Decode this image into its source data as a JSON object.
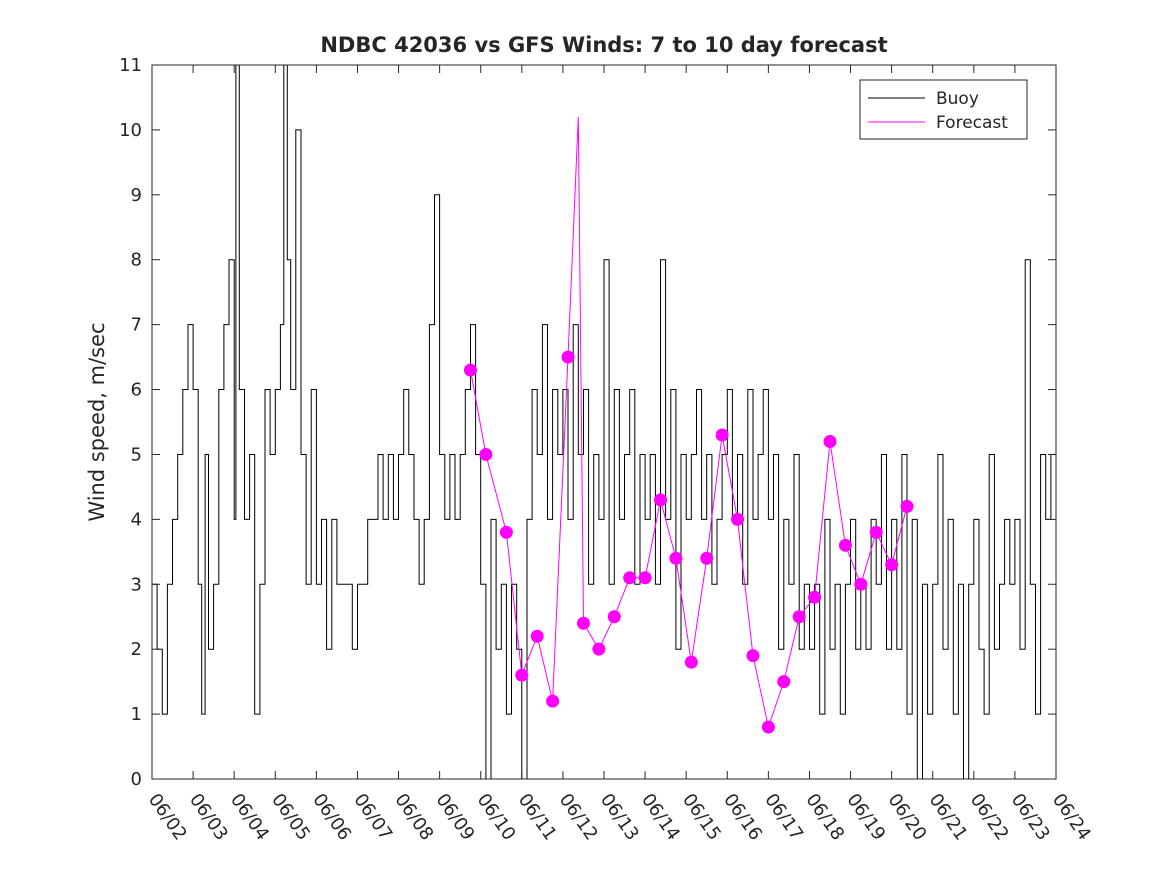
{
  "chart_data": {
    "type": "line",
    "title": "NDBC 42036 vs GFS Winds: 7 to 10 day forecast",
    "xlabel": "",
    "ylabel": "Wind speed, m/sec",
    "x_tick_labels": [
      "06/02",
      "06/03",
      "06/04",
      "06/05",
      "06/06",
      "06/07",
      "06/08",
      "06/09",
      "06/10",
      "06/11",
      "06/12",
      "06/13",
      "06/14",
      "06/15",
      "06/16",
      "06/17",
      "06/18",
      "06/19",
      "06/20",
      "06/21",
      "06/22",
      "06/23",
      "06/24"
    ],
    "xlim": [
      "06/02",
      "06/24"
    ],
    "y_ticks": [
      0,
      1,
      2,
      3,
      4,
      5,
      6,
      7,
      8,
      9,
      10,
      11
    ],
    "ylim": [
      0,
      11
    ],
    "grid": false,
    "legend": {
      "position": "top-right",
      "entries": [
        "Buoy",
        "Forecast"
      ]
    },
    "series": [
      {
        "name": "Buoy",
        "color": "#000000",
        "style": "stairs",
        "points": [
          [
            "06/02 00:00",
            3
          ],
          [
            "06/02 03:00",
            2
          ],
          [
            "06/02 06:00",
            1
          ],
          [
            "06/02 09:00",
            3
          ],
          [
            "06/02 12:00",
            4
          ],
          [
            "06/02 15:00",
            5
          ],
          [
            "06/02 18:00",
            6
          ],
          [
            "06/02 21:00",
            7
          ],
          [
            "06/03 00:00",
            6
          ],
          [
            "06/03 03:00",
            3
          ],
          [
            "06/03 05:00",
            1
          ],
          [
            "06/03 07:00",
            5
          ],
          [
            "06/03 09:00",
            2
          ],
          [
            "06/03 12:00",
            3
          ],
          [
            "06/03 15:00",
            6
          ],
          [
            "06/03 18:00",
            7
          ],
          [
            "06/03 21:00",
            8
          ],
          [
            "06/04 00:00",
            4
          ],
          [
            "06/04 01:00",
            11
          ],
          [
            "06/04 03:00",
            6
          ],
          [
            "06/04 06:00",
            4
          ],
          [
            "06/04 09:00",
            5
          ],
          [
            "06/04 12:00",
            1
          ],
          [
            "06/04 15:00",
            3
          ],
          [
            "06/04 18:00",
            6
          ],
          [
            "06/04 21:00",
            5
          ],
          [
            "06/05 00:00",
            6
          ],
          [
            "06/05 03:00",
            7
          ],
          [
            "06/05 05:00",
            11
          ],
          [
            "06/05 07:00",
            8
          ],
          [
            "06/05 09:00",
            6
          ],
          [
            "06/05 12:00",
            10
          ],
          [
            "06/05 15:00",
            5
          ],
          [
            "06/05 18:00",
            3
          ],
          [
            "06/05 21:00",
            6
          ],
          [
            "06/06 00:00",
            3
          ],
          [
            "06/06 03:00",
            4
          ],
          [
            "06/06 06:00",
            2
          ],
          [
            "06/06 09:00",
            4
          ],
          [
            "06/06 12:00",
            3
          ],
          [
            "06/06 18:00",
            3
          ],
          [
            "06/06 21:00",
            2
          ],
          [
            "06/07 00:00",
            3
          ],
          [
            "06/07 06:00",
            4
          ],
          [
            "06/07 12:00",
            5
          ],
          [
            "06/07 15:00",
            4
          ],
          [
            "06/07 18:00",
            5
          ],
          [
            "06/07 21:00",
            4
          ],
          [
            "06/08 00:00",
            5
          ],
          [
            "06/08 03:00",
            6
          ],
          [
            "06/08 06:00",
            5
          ],
          [
            "06/08 09:00",
            4
          ],
          [
            "06/08 12:00",
            3
          ],
          [
            "06/08 15:00",
            4
          ],
          [
            "06/08 18:00",
            7
          ],
          [
            "06/08 21:00",
            9
          ],
          [
            "06/09 00:00",
            5
          ],
          [
            "06/09 03:00",
            4
          ],
          [
            "06/09 06:00",
            5
          ],
          [
            "06/09 09:00",
            4
          ],
          [
            "06/09 12:00",
            5
          ],
          [
            "06/09 15:00",
            6
          ],
          [
            "06/09 18:00",
            7
          ],
          [
            "06/09 21:00",
            5
          ],
          [
            "06/10 00:00",
            3
          ],
          [
            "06/10 03:00",
            0
          ],
          [
            "06/10 06:00",
            4
          ],
          [
            "06/10 09:00",
            2
          ],
          [
            "06/10 12:00",
            3
          ],
          [
            "06/10 15:00",
            1
          ],
          [
            "06/10 18:00",
            3
          ],
          [
            "06/10 21:00",
            2
          ],
          [
            "06/11 00:00",
            0
          ],
          [
            "06/11 03:00",
            4
          ],
          [
            "06/11 06:00",
            6
          ],
          [
            "06/11 09:00",
            5
          ],
          [
            "06/11 12:00",
            7
          ],
          [
            "06/11 15:00",
            4
          ],
          [
            "06/11 18:00",
            6
          ],
          [
            "06/11 21:00",
            5
          ],
          [
            "06/12 00:00",
            6
          ],
          [
            "06/12 03:00",
            4
          ],
          [
            "06/12 06:00",
            7
          ],
          [
            "06/12 09:00",
            5
          ],
          [
            "06/12 12:00",
            6
          ],
          [
            "06/12 15:00",
            3
          ],
          [
            "06/12 18:00",
            5
          ],
          [
            "06/12 21:00",
            4
          ],
          [
            "06/13 00:00",
            8
          ],
          [
            "06/13 03:00",
            3
          ],
          [
            "06/13 06:00",
            6
          ],
          [
            "06/13 09:00",
            4
          ],
          [
            "06/13 12:00",
            5
          ],
          [
            "06/13 15:00",
            6
          ],
          [
            "06/13 18:00",
            3
          ],
          [
            "06/13 21:00",
            5
          ],
          [
            "06/14 00:00",
            4
          ],
          [
            "06/14 03:00",
            5
          ],
          [
            "06/14 06:00",
            3
          ],
          [
            "06/14 09:00",
            8
          ],
          [
            "06/14 12:00",
            4
          ],
          [
            "06/14 15:00",
            6
          ],
          [
            "06/14 18:00",
            2
          ],
          [
            "06/14 21:00",
            5
          ],
          [
            "06/15 00:00",
            4
          ],
          [
            "06/15 03:00",
            5
          ],
          [
            "06/15 06:00",
            6
          ],
          [
            "06/15 09:00",
            4
          ],
          [
            "06/15 12:00",
            5
          ],
          [
            "06/15 15:00",
            3
          ],
          [
            "06/15 18:00",
            4
          ],
          [
            "06/15 21:00",
            5
          ],
          [
            "06/16 00:00",
            6
          ],
          [
            "06/16 03:00",
            4
          ],
          [
            "06/16 06:00",
            5
          ],
          [
            "06/16 09:00",
            3
          ],
          [
            "06/16 12:00",
            6
          ],
          [
            "06/16 15:00",
            4
          ],
          [
            "06/16 18:00",
            5
          ],
          [
            "06/16 21:00",
            6
          ],
          [
            "06/17 00:00",
            4
          ],
          [
            "06/17 03:00",
            5
          ],
          [
            "06/17 06:00",
            2
          ],
          [
            "06/17 09:00",
            4
          ],
          [
            "06/17 12:00",
            3
          ],
          [
            "06/17 15:00",
            5
          ],
          [
            "06/17 18:00",
            2
          ],
          [
            "06/17 21:00",
            3
          ],
          [
            "06/18 00:00",
            2
          ],
          [
            "06/18 03:00",
            3
          ],
          [
            "06/18 06:00",
            1
          ],
          [
            "06/18 09:00",
            4
          ],
          [
            "06/18 12:00",
            2
          ],
          [
            "06/18 15:00",
            3
          ],
          [
            "06/18 18:00",
            1
          ],
          [
            "06/18 21:00",
            3
          ],
          [
            "06/19 00:00",
            4
          ],
          [
            "06/19 03:00",
            2
          ],
          [
            "06/19 06:00",
            3
          ],
          [
            "06/19 09:00",
            2
          ],
          [
            "06/19 12:00",
            4
          ],
          [
            "06/19 15:00",
            3
          ],
          [
            "06/19 18:00",
            5
          ],
          [
            "06/19 21:00",
            2
          ],
          [
            "06/20 00:00",
            4
          ],
          [
            "06/20 03:00",
            2
          ],
          [
            "06/20 06:00",
            5
          ],
          [
            "06/20 09:00",
            1
          ],
          [
            "06/20 12:00",
            4
          ],
          [
            "06/20 15:00",
            0
          ],
          [
            "06/20 18:00",
            3
          ],
          [
            "06/20 21:00",
            1
          ],
          [
            "06/21 00:00",
            3
          ],
          [
            "06/21 03:00",
            5
          ],
          [
            "06/21 06:00",
            2
          ],
          [
            "06/21 09:00",
            4
          ],
          [
            "06/21 12:00",
            1
          ],
          [
            "06/21 15:00",
            3
          ],
          [
            "06/21 18:00",
            0
          ],
          [
            "06/21 21:00",
            3
          ],
          [
            "06/22 00:00",
            4
          ],
          [
            "06/22 03:00",
            2
          ],
          [
            "06/22 06:00",
            1
          ],
          [
            "06/22 09:00",
            5
          ],
          [
            "06/22 12:00",
            2
          ],
          [
            "06/22 15:00",
            3
          ],
          [
            "06/22 18:00",
            4
          ],
          [
            "06/22 21:00",
            3
          ],
          [
            "06/23 00:00",
            4
          ],
          [
            "06/23 03:00",
            2
          ],
          [
            "06/23 06:00",
            8
          ],
          [
            "06/23 09:00",
            3
          ],
          [
            "06/23 12:00",
            1
          ],
          [
            "06/23 15:00",
            5
          ],
          [
            "06/23 18:00",
            4
          ],
          [
            "06/23 21:00",
            5
          ],
          [
            "06/24 00:00",
            5
          ]
        ]
      },
      {
        "name": "Forecast",
        "color": "#ff00ff",
        "style": "lines",
        "markers": [
          [
            "06/09 18:00",
            6.3
          ],
          [
            "06/10 03:00",
            5.0
          ],
          [
            "06/10 15:00",
            3.8
          ],
          [
            "06/11 00:00",
            1.6
          ],
          [
            "06/11 09:00",
            2.2
          ],
          [
            "06/11 18:00",
            1.2
          ],
          [
            "06/12 03:00",
            6.5
          ],
          [
            "06/12 12:00",
            2.4
          ],
          [
            "06/12 21:00",
            2.0
          ],
          [
            "06/13 06:00",
            2.5
          ],
          [
            "06/13 15:00",
            3.1
          ],
          [
            "06/14 00:00",
            3.1
          ],
          [
            "06/14 09:00",
            4.3
          ],
          [
            "06/14 18:00",
            3.4
          ],
          [
            "06/15 03:00",
            1.8
          ],
          [
            "06/15 12:00",
            3.4
          ],
          [
            "06/15 21:00",
            5.3
          ],
          [
            "06/16 06:00",
            4.0
          ],
          [
            "06/16 15:00",
            1.9
          ],
          [
            "06/17 00:00",
            0.8
          ],
          [
            "06/17 09:00",
            1.5
          ],
          [
            "06/17 18:00",
            2.5
          ],
          [
            "06/18 03:00",
            2.8
          ],
          [
            "06/18 12:00",
            5.2
          ],
          [
            "06/18 21:00",
            3.6
          ],
          [
            "06/19 06:00",
            3.0
          ],
          [
            "06/19 15:00",
            3.8
          ],
          [
            "06/20 00:00",
            3.3
          ],
          [
            "06/20 09:00",
            4.2
          ]
        ],
        "peak": [
          "06/12 09:00",
          10.2
        ]
      }
    ]
  }
}
